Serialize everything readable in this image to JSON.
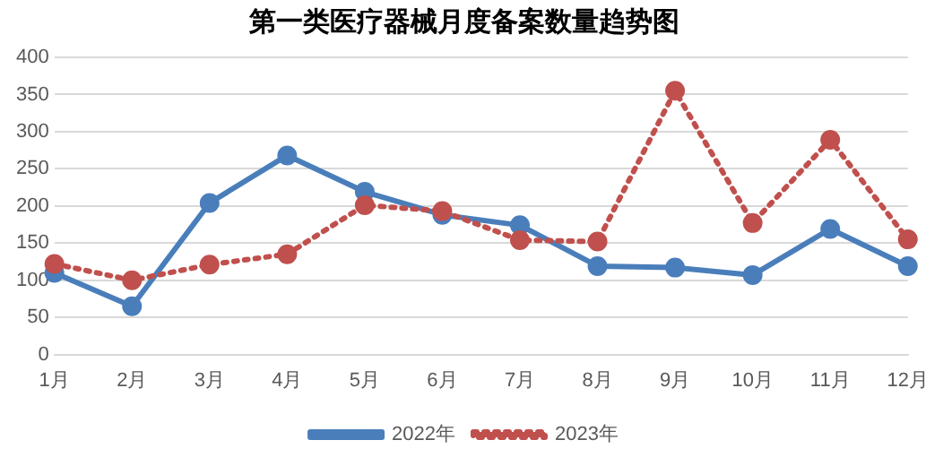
{
  "chart_data": {
    "type": "line",
    "title": "第一类医疗器械月度备案数量趋势图",
    "categories": [
      "1月",
      "2月",
      "3月",
      "4月",
      "5月",
      "6月",
      "7月",
      "8月",
      "9月",
      "10月",
      "11月",
      "12月"
    ],
    "series": [
      {
        "name": "2022年",
        "color": "#4a7ebb",
        "line_style": "solid",
        "values": [
          110,
          65,
          204,
          268,
          219,
          188,
          174,
          119,
          117,
          107,
          169,
          119
        ]
      },
      {
        "name": "2023年",
        "color": "#c0504d",
        "line_style": "dotted",
        "values": [
          122,
          100,
          121,
          135,
          201,
          193,
          154,
          152,
          355,
          177,
          289,
          155
        ]
      }
    ],
    "ylim": [
      0,
      400
    ],
    "yticks": [
      0,
      50,
      100,
      150,
      200,
      250,
      300,
      350,
      400
    ],
    "grid": "y",
    "legend": "bottom",
    "marker": "circle"
  }
}
